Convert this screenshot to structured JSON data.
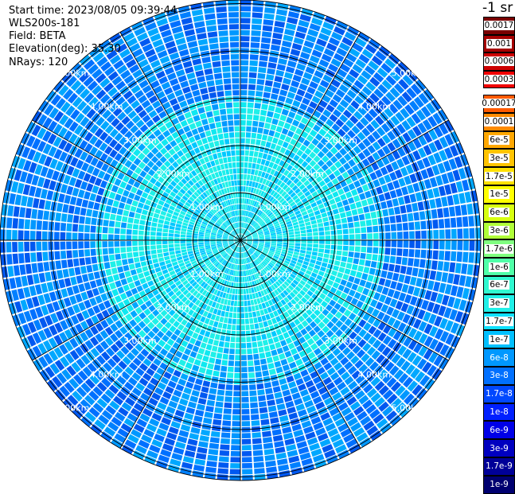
{
  "info": {
    "start_time": "Start time: 2023/08/05 09:39:44",
    "instrument": "WLS200s-181",
    "field": "Field: BETA",
    "elevation": "Elevation(deg): 35.30",
    "nrays": "NRays: 120"
  },
  "colorbar": {
    "title": "-1 sr",
    "upper": [
      {
        "label": "0.0017",
        "color": "#7a0000"
      },
      {
        "label": "0.001",
        "color": "#a50000"
      },
      {
        "label": "0.0006",
        "color": "#cd0000"
      },
      {
        "label": "0.0003",
        "color": "#f00000"
      }
    ],
    "lower": [
      {
        "label": "0.00017",
        "color": "#ff5a00"
      },
      {
        "label": "0.0001",
        "color": "#ff8a00"
      },
      {
        "label": "6e-5",
        "color": "#ffa800"
      },
      {
        "label": "3e-5",
        "color": "#ffc400"
      },
      {
        "label": "1.7e-5",
        "color": "#ffe000"
      },
      {
        "label": "1e-5",
        "color": "#ffff00"
      },
      {
        "label": "6e-6",
        "color": "#d8ff10"
      },
      {
        "label": "3e-6",
        "color": "#b0ff38"
      },
      {
        "label": "1.7e-6",
        "color": "#80ff80"
      },
      {
        "label": "1e-6",
        "color": "#50ffa8"
      },
      {
        "label": "6e-7",
        "color": "#30f8d0"
      },
      {
        "label": "3e-7",
        "color": "#20f0e8"
      },
      {
        "label": "1.7e-7",
        "color": "#10e0ff"
      },
      {
        "label": "1e-7",
        "color": "#00c0ff"
      },
      {
        "label": "6e-8",
        "color": "#0098ff"
      },
      {
        "label": "3e-8",
        "color": "#0070ff"
      },
      {
        "label": "1.7e-8",
        "color": "#0048ff"
      },
      {
        "label": "1e-8",
        "color": "#0020ff"
      },
      {
        "label": "6e-9",
        "color": "#0000e8"
      },
      {
        "label": "3e-9",
        "color": "#0000c0"
      },
      {
        "label": "1.7e-9",
        "color": "#000098"
      },
      {
        "label": "1e-9",
        "color": "#000070"
      }
    ]
  },
  "ppi": {
    "range_labels": [
      "1.00km",
      "2.00km",
      "3.00km",
      "4.00km",
      "5.00km"
    ],
    "field_palette": [
      "#00c8ff",
      "#10e8f0",
      "#20f0e8",
      "#00a8ff",
      "#0098ff",
      "#0080ff",
      "#0070ff",
      "#0058f0"
    ]
  }
}
